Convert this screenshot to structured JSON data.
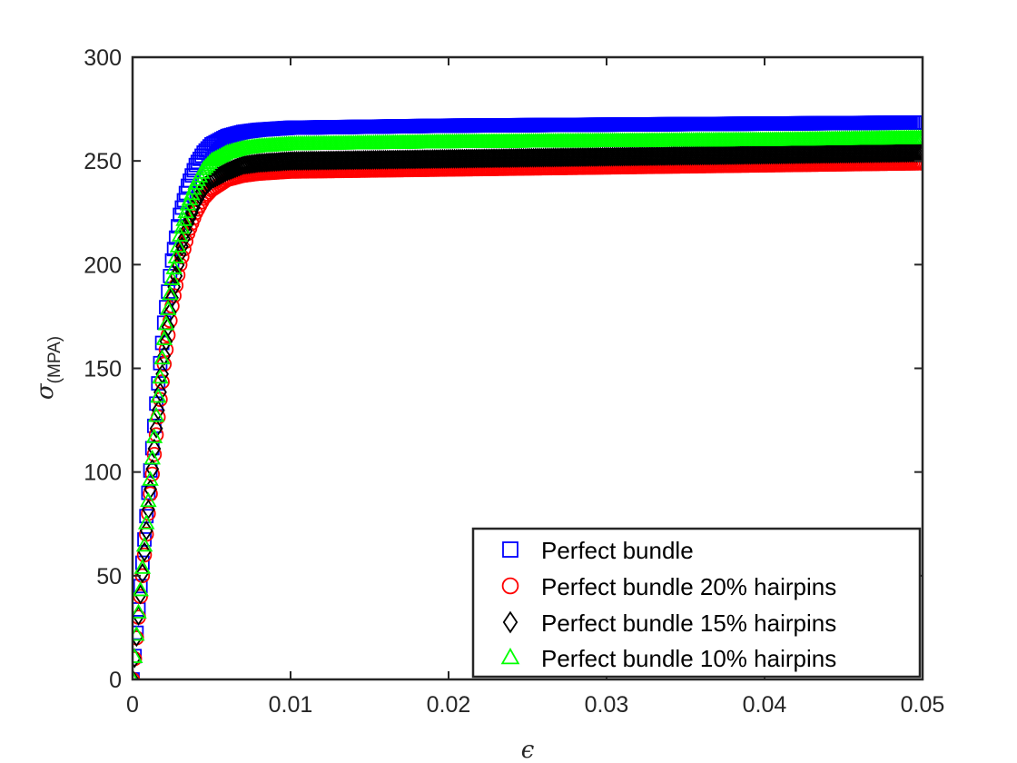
{
  "chart_data": {
    "type": "scatter",
    "title": "",
    "xlabel": "ϵ",
    "ylabel": "σ",
    "ylabel_sub": "(MPA)",
    "xlim": [
      0,
      0.05
    ],
    "ylim": [
      0,
      300
    ],
    "xticks": [
      0,
      0.01,
      0.02,
      0.03,
      0.04,
      0.05
    ],
    "xtick_labels": [
      "0",
      "0.01",
      "0.02",
      "0.03",
      "0.04",
      "0.05"
    ],
    "yticks": [
      0,
      50,
      100,
      150,
      200,
      250,
      300
    ],
    "ytick_labels": [
      "0",
      "50",
      "100",
      "150",
      "200",
      "250",
      "300"
    ],
    "grid": false,
    "legend_position": "bottom-right",
    "series": [
      {
        "name": "Perfect bundle",
        "marker": "square",
        "color": "#0000ff",
        "points": [
          [
            0,
            0
          ],
          [
            0.0005,
            45
          ],
          [
            0.001,
            90
          ],
          [
            0.0015,
            133
          ],
          [
            0.002,
            172
          ],
          [
            0.0025,
            202
          ],
          [
            0.003,
            224
          ],
          [
            0.0035,
            238
          ],
          [
            0.004,
            248
          ],
          [
            0.0045,
            254
          ],
          [
            0.005,
            258
          ],
          [
            0.006,
            262
          ],
          [
            0.007,
            264
          ],
          [
            0.008,
            265
          ],
          [
            0.01,
            266
          ],
          [
            0.02,
            267
          ],
          [
            0.03,
            267.5
          ],
          [
            0.04,
            268
          ],
          [
            0.05,
            268.5
          ]
        ]
      },
      {
        "name": "Perfect bundle 20% hairpins",
        "marker": "circle",
        "color": "#ff0000",
        "points": [
          [
            0,
            0
          ],
          [
            0.0005,
            40
          ],
          [
            0.001,
            80
          ],
          [
            0.0015,
            118
          ],
          [
            0.002,
            152
          ],
          [
            0.0025,
            180
          ],
          [
            0.003,
            200
          ],
          [
            0.0035,
            215
          ],
          [
            0.004,
            225
          ],
          [
            0.0045,
            232
          ],
          [
            0.005,
            236
          ],
          [
            0.006,
            241
          ],
          [
            0.007,
            243
          ],
          [
            0.008,
            244
          ],
          [
            0.01,
            245
          ],
          [
            0.02,
            246
          ],
          [
            0.03,
            247
          ],
          [
            0.04,
            248
          ],
          [
            0.05,
            249
          ]
        ]
      },
      {
        "name": "Perfect bundle 15% hairpins",
        "marker": "diamond",
        "color": "#000000",
        "points": [
          [
            0,
            0
          ],
          [
            0.0005,
            41
          ],
          [
            0.001,
            82
          ],
          [
            0.0015,
            121
          ],
          [
            0.002,
            156
          ],
          [
            0.0025,
            184
          ],
          [
            0.003,
            205
          ],
          [
            0.0035,
            220
          ],
          [
            0.004,
            230
          ],
          [
            0.0045,
            237
          ],
          [
            0.005,
            241
          ],
          [
            0.006,
            245
          ],
          [
            0.007,
            248
          ],
          [
            0.008,
            249
          ],
          [
            0.01,
            250
          ],
          [
            0.02,
            251
          ],
          [
            0.03,
            252
          ],
          [
            0.04,
            253
          ],
          [
            0.05,
            254
          ]
        ]
      },
      {
        "name": "Perfect bundle 10% hairpins",
        "marker": "triangle",
        "color": "#00ff00",
        "points": [
          [
            0,
            0
          ],
          [
            0.0005,
            43
          ],
          [
            0.001,
            86
          ],
          [
            0.0015,
            127
          ],
          [
            0.002,
            164
          ],
          [
            0.0025,
            193
          ],
          [
            0.003,
            214
          ],
          [
            0.0035,
            229
          ],
          [
            0.004,
            239
          ],
          [
            0.0045,
            246
          ],
          [
            0.005,
            250
          ],
          [
            0.006,
            254
          ],
          [
            0.007,
            256
          ],
          [
            0.008,
            257
          ],
          [
            0.01,
            258
          ],
          [
            0.02,
            259
          ],
          [
            0.03,
            259.5
          ],
          [
            0.04,
            260
          ],
          [
            0.05,
            261
          ]
        ]
      }
    ]
  }
}
